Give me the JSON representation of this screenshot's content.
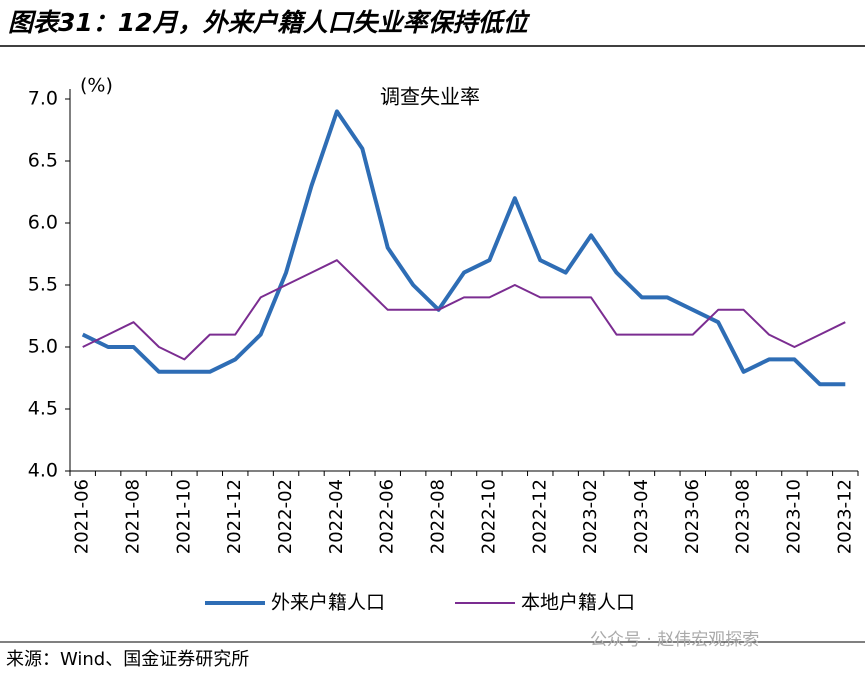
{
  "header": {
    "title": "图表31：12月，外来户籍人口失业率保持低位"
  },
  "chart_data": {
    "type": "line",
    "title": "调查失业率",
    "y_label": "(%)",
    "categories": [
      "2021-06",
      null,
      "2021-08",
      null,
      "2021-10",
      null,
      "2021-12",
      null,
      "2022-02",
      null,
      "2022-04",
      null,
      "2022-06",
      null,
      "2022-08",
      null,
      "2022-10",
      null,
      "2022-12",
      null,
      "2023-02",
      null,
      "2023-04",
      null,
      "2023-06",
      null,
      "2023-08",
      null,
      "2023-10",
      null,
      "2023-12"
    ],
    "series": [
      {
        "name": "外来户籍人口",
        "color": "#2e6db5",
        "values": [
          5.1,
          5.0,
          5.0,
          4.8,
          4.8,
          4.8,
          4.9,
          5.1,
          5.6,
          6.3,
          6.9,
          6.6,
          5.8,
          5.5,
          5.3,
          5.6,
          5.7,
          6.2,
          5.7,
          5.6,
          5.9,
          5.6,
          5.4,
          5.4,
          5.3,
          5.2,
          4.8,
          4.9,
          4.9,
          4.7,
          4.7
        ]
      },
      {
        "name": "本地户籍人口",
        "color": "#7b2d91",
        "values": [
          5.0,
          5.1,
          5.2,
          5.0,
          4.9,
          5.1,
          5.1,
          5.4,
          5.5,
          5.6,
          5.7,
          5.5,
          5.3,
          5.3,
          5.3,
          5.4,
          5.4,
          5.5,
          5.4,
          5.4,
          5.4,
          5.1,
          5.1,
          5.1,
          5.1,
          5.3,
          5.3,
          5.1,
          5.0,
          5.1,
          5.2
        ]
      }
    ],
    "ylim": [
      4.0,
      7.0
    ],
    "yticks": [
      {
        "value": 4,
        "label": "4.0"
      },
      {
        "value": 4.5,
        "label": "4.5"
      },
      {
        "value": 5,
        "label": "5.0"
      },
      {
        "value": 5.5,
        "label": "5.5"
      },
      {
        "value": 6,
        "label": "6.0"
      },
      {
        "value": 6.5,
        "label": "6.5"
      },
      {
        "value": 7,
        "label": "7.0"
      }
    ],
    "grid": false,
    "legend": "bottom"
  },
  "footer": {
    "source": "来源：Wind、国金证券研究所",
    "watermark": "公众号 · 赵伟宏观探索"
  }
}
